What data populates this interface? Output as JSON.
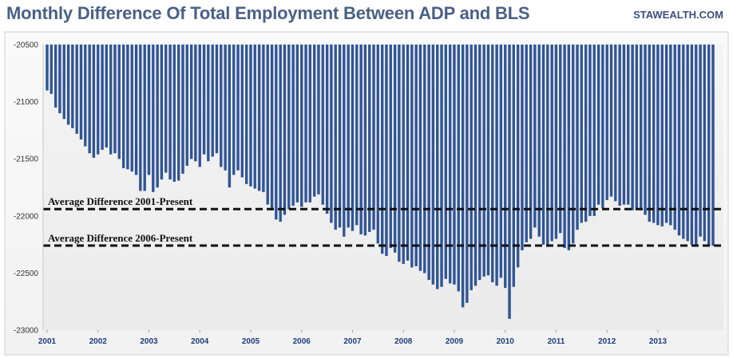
{
  "header": {
    "title": "Monthly Difference Of Total Employment Between ADP and BLS",
    "brand": "STAWEALTH.COM"
  },
  "chart_data": {
    "type": "bar",
    "title": "Monthly Difference Of Total Employment Between ADP and BLS",
    "xlabel": "",
    "ylabel": "",
    "ylim": [
      -23000,
      -20500
    ],
    "y_ticks": [
      "-20500",
      "-21000",
      "-21500",
      "-22000",
      "-22500",
      "-23000"
    ],
    "x_tick_labels": [
      "2001",
      "2002",
      "2003",
      "2004",
      "2005",
      "2006",
      "2007",
      "2008",
      "2009",
      "2010",
      "2011",
      "2012",
      "2013"
    ],
    "bar_baseline": -20500,
    "start": "2001-01",
    "values": [
      -20900,
      -20930,
      -21050,
      -21100,
      -21150,
      -21200,
      -21230,
      -21280,
      -21330,
      -21390,
      -21450,
      -21490,
      -21460,
      -21420,
      -21400,
      -21460,
      -21450,
      -21500,
      -21580,
      -21590,
      -21610,
      -21640,
      -21780,
      -21780,
      -21640,
      -21790,
      -21750,
      -21680,
      -21620,
      -21680,
      -21700,
      -21690,
      -21630,
      -21560,
      -21500,
      -21520,
      -21570,
      -21460,
      -21520,
      -21480,
      -21450,
      -21570,
      -21600,
      -21750,
      -21640,
      -21600,
      -21660,
      -21720,
      -21740,
      -21760,
      -21780,
      -21790,
      -21900,
      -21950,
      -22030,
      -22050,
      -21990,
      -21940,
      -21910,
      -21880,
      -21920,
      -21880,
      -21880,
      -21830,
      -21810,
      -21900,
      -21980,
      -22060,
      -22120,
      -22100,
      -22180,
      -22100,
      -22130,
      -22080,
      -22160,
      -22170,
      -22140,
      -22120,
      -22240,
      -22330,
      -22350,
      -22280,
      -22320,
      -22400,
      -22420,
      -22390,
      -22450,
      -22440,
      -22480,
      -22500,
      -22560,
      -22600,
      -22640,
      -22620,
      -22550,
      -22590,
      -22600,
      -22660,
      -22800,
      -22760,
      -22650,
      -22610,
      -22560,
      -22530,
      -22520,
      -22580,
      -22610,
      -22540,
      -22630,
      -22900,
      -22620,
      -22450,
      -22300,
      -22230,
      -22200,
      -22100,
      -22180,
      -22250,
      -22270,
      -22220,
      -22200,
      -22150,
      -22280,
      -22300,
      -22240,
      -22120,
      -22060,
      -22050,
      -22000,
      -22000,
      -21900,
      -21930,
      -21860,
      -21830,
      -21870,
      -21910,
      -21900,
      -21900,
      -21950,
      -21940,
      -21950,
      -21990,
      -22050,
      -22060,
      -22080,
      -22090,
      -22060,
      -22080,
      -22120,
      -22170,
      -22200,
      -22220,
      -22250,
      -22260,
      -22180,
      -22220,
      -22260,
      -22260
    ],
    "series": [
      {
        "name": "Average Difference 2001-Present",
        "type": "hline",
        "value": -21940,
        "color": "#111111"
      },
      {
        "name": "Average Difference 2006-Present",
        "type": "hline",
        "value": -22260,
        "color": "#111111"
      }
    ],
    "grid": false,
    "colors": {
      "bar_fill": "#2f5597",
      "bar_edge": "#1f3d7a",
      "plot_bg_top": "#f4f4f4",
      "plot_bg_bottom": "#ebebeb",
      "title": "#4a5f86"
    }
  }
}
